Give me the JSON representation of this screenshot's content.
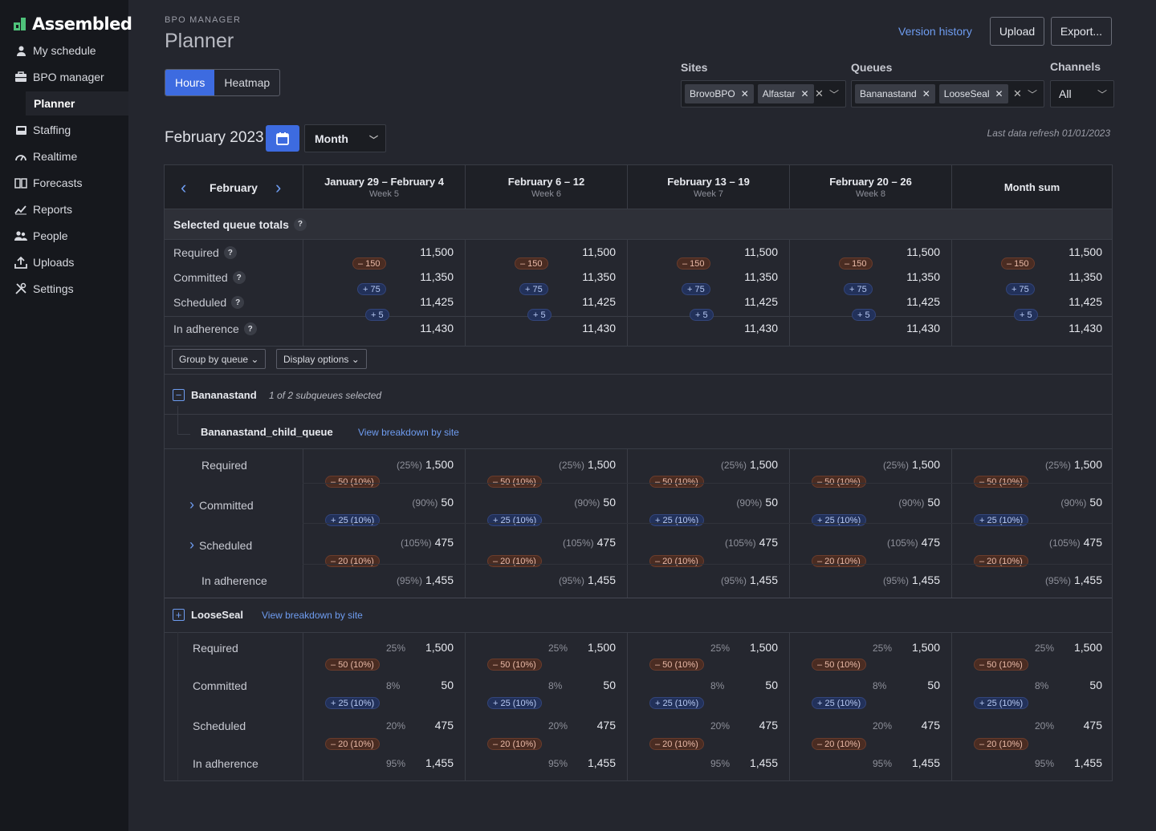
{
  "app": {
    "brand": "Assembled"
  },
  "nav": [
    {
      "label": "My schedule",
      "icon": "person-icon"
    },
    {
      "label": "BPO manager",
      "icon": "briefcase-icon"
    },
    {
      "label": "Planner",
      "icon": ""
    },
    {
      "label": "Staffing",
      "icon": "inbox-icon"
    },
    {
      "label": "Realtime",
      "icon": "gauge-icon"
    },
    {
      "label": "Forecasts",
      "icon": "book-icon"
    },
    {
      "label": "Reports",
      "icon": "chart-icon"
    },
    {
      "label": "People",
      "icon": "people-icon"
    },
    {
      "label": "Uploads",
      "icon": "upload-icon"
    },
    {
      "label": "Settings",
      "icon": "tools-icon"
    }
  ],
  "page": {
    "eyebrow": "BPO MANAGER",
    "title": "Planner"
  },
  "view_toggle": {
    "hours": "Hours",
    "heatmap": "Heatmap"
  },
  "actions": {
    "version_history": "Version history",
    "upload": "Upload",
    "export": "Export..."
  },
  "filters": {
    "sites": {
      "label": "Sites",
      "chips": [
        "BrovoBPO",
        "Alfastar"
      ]
    },
    "queues": {
      "label": "Queues",
      "chips": [
        "Bananastand",
        "LooseSeal"
      ]
    },
    "channels": {
      "label": "Channels",
      "value": "All"
    }
  },
  "period": {
    "title": "February 2023",
    "mode": "Month",
    "refresh": "Last data refresh 01/01/2023",
    "nav_month": "February"
  },
  "columns": [
    {
      "title": "January 29 – February 4",
      "week": "Week 5"
    },
    {
      "title": "February 6 – 12",
      "week": "Week 6"
    },
    {
      "title": "February 13 – 19",
      "week": "Week 7"
    },
    {
      "title": "February 20 – 26",
      "week": "Week 8"
    },
    {
      "title": "Month sum",
      "week": ""
    }
  ],
  "totals": {
    "label": "Selected queue totals",
    "rows": [
      {
        "label": "Required",
        "value": "11,500"
      },
      {
        "label": "Committed",
        "value": "11,350"
      },
      {
        "label": "Scheduled",
        "value": "11,425"
      },
      {
        "label": "In adherence",
        "value": "11,430"
      }
    ],
    "deltas": [
      "– 150",
      "+ 75",
      "+ 5"
    ]
  },
  "controls": {
    "group_by": "Group by queue",
    "display": "Display options"
  },
  "queue1": {
    "name": "Bananastand",
    "subnote": "1 of 2 subqueues selected",
    "child": "Bananastand_child_queue",
    "breakdown": "View breakdown by site",
    "rows": [
      {
        "label": "Required",
        "pct": "(25%)",
        "value": "1,500"
      },
      {
        "label": "Committed",
        "pct": "(90%)",
        "value": "50"
      },
      {
        "label": "Scheduled",
        "pct": "(105%)",
        "value": "475"
      },
      {
        "label": "In adherence",
        "pct": "(95%)",
        "value": "1,455"
      }
    ],
    "deltas": [
      "– 50 (10%)",
      "+ 25 (10%)",
      "– 20 (10%)"
    ]
  },
  "queue2": {
    "name": "LooseSeal",
    "breakdown": "View breakdown by site",
    "rows": [
      {
        "label": "Required",
        "pct": "25%",
        "value": "1,500"
      },
      {
        "label": "Committed",
        "pct": "8%",
        "value": "50"
      },
      {
        "label": "Scheduled",
        "pct": "20%",
        "value": "475"
      },
      {
        "label": "In adherence",
        "pct": "95%",
        "value": "1,455"
      }
    ],
    "deltas": [
      "– 50 (10%)",
      "+ 25 (10%)",
      "– 20 (10%)"
    ]
  }
}
